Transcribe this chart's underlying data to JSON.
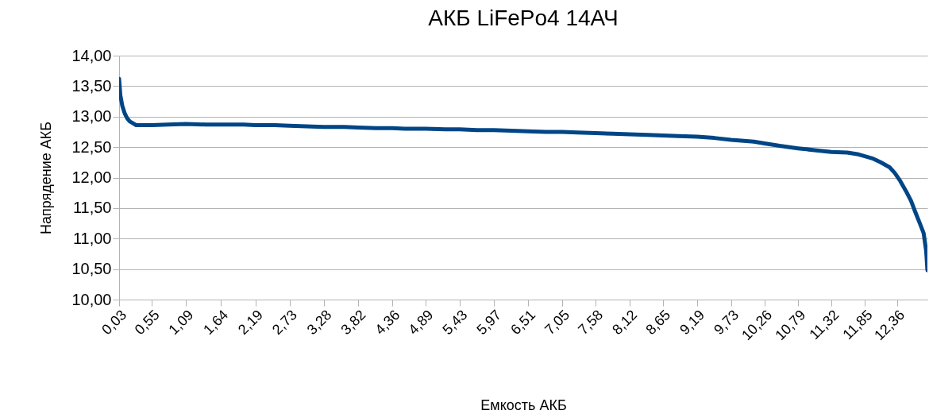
{
  "chart_data": {
    "type": "line",
    "title": "АКБ LiFePo4 14АЧ",
    "xlabel": "Емкость АКБ",
    "ylabel": "Напрядение АКБ",
    "x": [
      0.03,
      0.05,
      0.08,
      0.12,
      0.16,
      0.2,
      0.25,
      0.3,
      0.4,
      0.55,
      0.8,
      1.09,
      1.4,
      1.64,
      2.0,
      2.19,
      2.5,
      2.73,
      3.0,
      3.28,
      3.6,
      3.82,
      4.1,
      4.36,
      4.6,
      4.89,
      5.2,
      5.43,
      5.7,
      5.97,
      6.25,
      6.51,
      6.8,
      7.05,
      7.3,
      7.58,
      7.85,
      8.12,
      8.4,
      8.65,
      8.9,
      9.19,
      9.46,
      9.73,
      10.09,
      10.26,
      10.5,
      10.79,
      11.05,
      11.32,
      11.57,
      11.75,
      11.98,
      12.1,
      12.24,
      12.32,
      12.4,
      12.5,
      12.58,
      12.65,
      12.72,
      12.78,
      12.82,
      12.84
    ],
    "series": [
      {
        "color": "#004586",
        "values": [
          13.62,
          13.35,
          13.18,
          13.05,
          12.97,
          12.92,
          12.89,
          12.86,
          12.86,
          12.86,
          12.87,
          12.88,
          12.87,
          12.87,
          12.87,
          12.86,
          12.86,
          12.85,
          12.84,
          12.83,
          12.83,
          12.82,
          12.81,
          12.81,
          12.8,
          12.8,
          12.79,
          12.79,
          12.78,
          12.78,
          12.77,
          12.76,
          12.75,
          12.75,
          12.74,
          12.73,
          12.72,
          12.71,
          12.7,
          12.69,
          12.68,
          12.67,
          12.65,
          12.62,
          12.59,
          12.56,
          12.52,
          12.48,
          12.45,
          12.42,
          12.41,
          12.38,
          12.31,
          12.25,
          12.17,
          12.08,
          11.96,
          11.78,
          11.62,
          11.43,
          11.25,
          11.09,
          10.8,
          10.48
        ]
      }
    ],
    "xlim": [
      0.03,
      12.84
    ],
    "ylim": [
      10,
      14
    ],
    "xticks": [
      {
        "value": 0.03,
        "label": "0,03"
      },
      {
        "value": 0.55,
        "label": "0,55"
      },
      {
        "value": 1.09,
        "label": "1,09"
      },
      {
        "value": 1.64,
        "label": "1,64"
      },
      {
        "value": 2.19,
        "label": "2,19"
      },
      {
        "value": 2.73,
        "label": "2,73"
      },
      {
        "value": 3.28,
        "label": "3,28"
      },
      {
        "value": 3.82,
        "label": "3,82"
      },
      {
        "value": 4.36,
        "label": "4,36"
      },
      {
        "value": 4.89,
        "label": "4,89"
      },
      {
        "value": 5.43,
        "label": "5,43"
      },
      {
        "value": 5.97,
        "label": "5,97"
      },
      {
        "value": 6.51,
        "label": "6,51"
      },
      {
        "value": 7.05,
        "label": "7,05"
      },
      {
        "value": 7.58,
        "label": "7,58"
      },
      {
        "value": 8.12,
        "label": "8,12"
      },
      {
        "value": 8.65,
        "label": "8,65"
      },
      {
        "value": 9.19,
        "label": "9,19"
      },
      {
        "value": 9.73,
        "label": "9,73"
      },
      {
        "value": 10.26,
        "label": "10,26"
      },
      {
        "value": 10.79,
        "label": "10,79"
      },
      {
        "value": 11.32,
        "label": "11,32"
      },
      {
        "value": 11.85,
        "label": "11,85"
      },
      {
        "value": 12.36,
        "label": "12,36"
      }
    ],
    "yticks": [
      {
        "value": 10,
        "label": "10,00"
      },
      {
        "value": 10.5,
        "label": "10,50"
      },
      {
        "value": 11,
        "label": "11,00"
      },
      {
        "value": 11.5,
        "label": "11,50"
      },
      {
        "value": 12,
        "label": "12,00"
      },
      {
        "value": 12.5,
        "label": "12,50"
      },
      {
        "value": 13,
        "label": "13,00"
      },
      {
        "value": 13.5,
        "label": "13,50"
      },
      {
        "value": 14,
        "label": "14,00"
      }
    ],
    "grid": "y"
  }
}
